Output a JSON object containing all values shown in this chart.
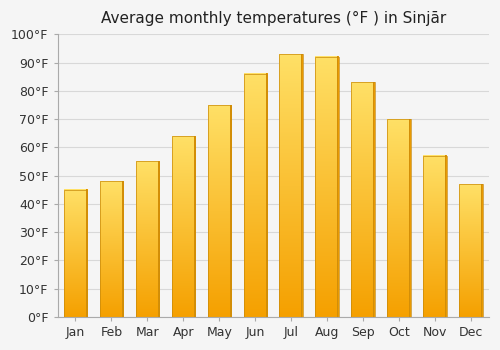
{
  "title": "Average monthly temperatures (°F ) in Sinjār",
  "months": [
    "Jan",
    "Feb",
    "Mar",
    "Apr",
    "May",
    "Jun",
    "Jul",
    "Aug",
    "Sep",
    "Oct",
    "Nov",
    "Dec"
  ],
  "values": [
    45,
    48,
    55,
    64,
    75,
    86,
    93,
    92,
    83,
    70,
    57,
    47
  ],
  "bar_color_top": "#FFE066",
  "bar_color_mid": "#FFBB00",
  "bar_color_bottom": "#F5A000",
  "bar_edge_color": "#C8890A",
  "ylim": [
    0,
    100
  ],
  "ytick_step": 10,
  "background_color": "#f5f5f5",
  "grid_color": "#d8d8d8",
  "title_fontsize": 11,
  "tick_fontsize": 9,
  "bar_width": 0.65
}
